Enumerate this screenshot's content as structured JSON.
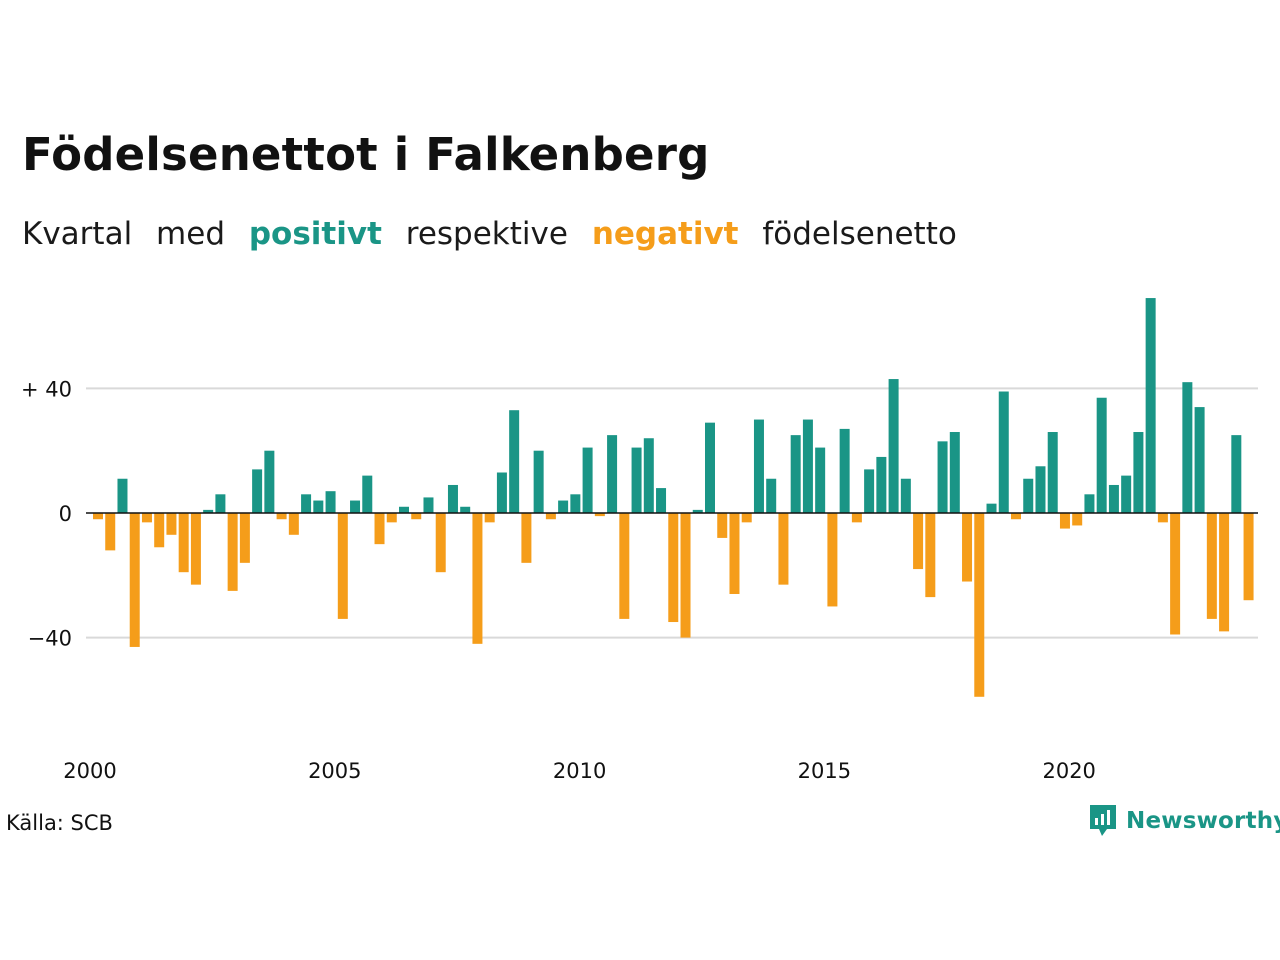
{
  "title": "Födelsenettot i Falkenberg",
  "subtitle": {
    "prefix": "Kvartal",
    "med": "med",
    "positive": "positivt",
    "middle": "respektive",
    "negative": "negativt",
    "suffix": "födelsenetto"
  },
  "source": "Källa: SCB",
  "brand": "Newsworthy",
  "colors": {
    "positive": "#1a9586",
    "negative": "#f59d1a",
    "grid": "#d9d9d9",
    "zero": "#111111"
  },
  "chart_data": {
    "type": "bar",
    "x_start": "2000 Q1",
    "frequency": "quarterly",
    "ylim": [
      -65,
      72
    ],
    "y_ticks": [
      40,
      0,
      -40
    ],
    "y_tick_labels": [
      "+ 40",
      "0",
      "−40"
    ],
    "x_tick_labels": [
      "2000",
      "2005",
      "2010",
      "2015",
      "2020"
    ],
    "x_tick_years": [
      2000,
      2005,
      2010,
      2015,
      2020
    ],
    "grid": true,
    "values": [
      -2,
      -12,
      11,
      -43,
      -3,
      -11,
      -7,
      -19,
      -23,
      1,
      6,
      -25,
      -16,
      14,
      20,
      -2,
      -7,
      6,
      4,
      7,
      -34,
      4,
      12,
      -10,
      -3,
      2,
      -2,
      5,
      -19,
      9,
      2,
      -42,
      -3,
      13,
      33,
      -16,
      20,
      -2,
      4,
      6,
      21,
      -1,
      25,
      -34,
      21,
      24,
      8,
      -35,
      -40,
      1,
      29,
      -8,
      -26,
      -3,
      30,
      11,
      -23,
      25,
      30,
      21,
      -30,
      27,
      -3,
      14,
      18,
      43,
      11,
      -18,
      -27,
      23,
      26,
      -22,
      -59,
      3,
      39,
      -2,
      11,
      15,
      26,
      -5,
      -4,
      6,
      37,
      9,
      12,
      26,
      69,
      -3,
      -39,
      42,
      34,
      -34,
      -38,
      25,
      -28
    ]
  }
}
